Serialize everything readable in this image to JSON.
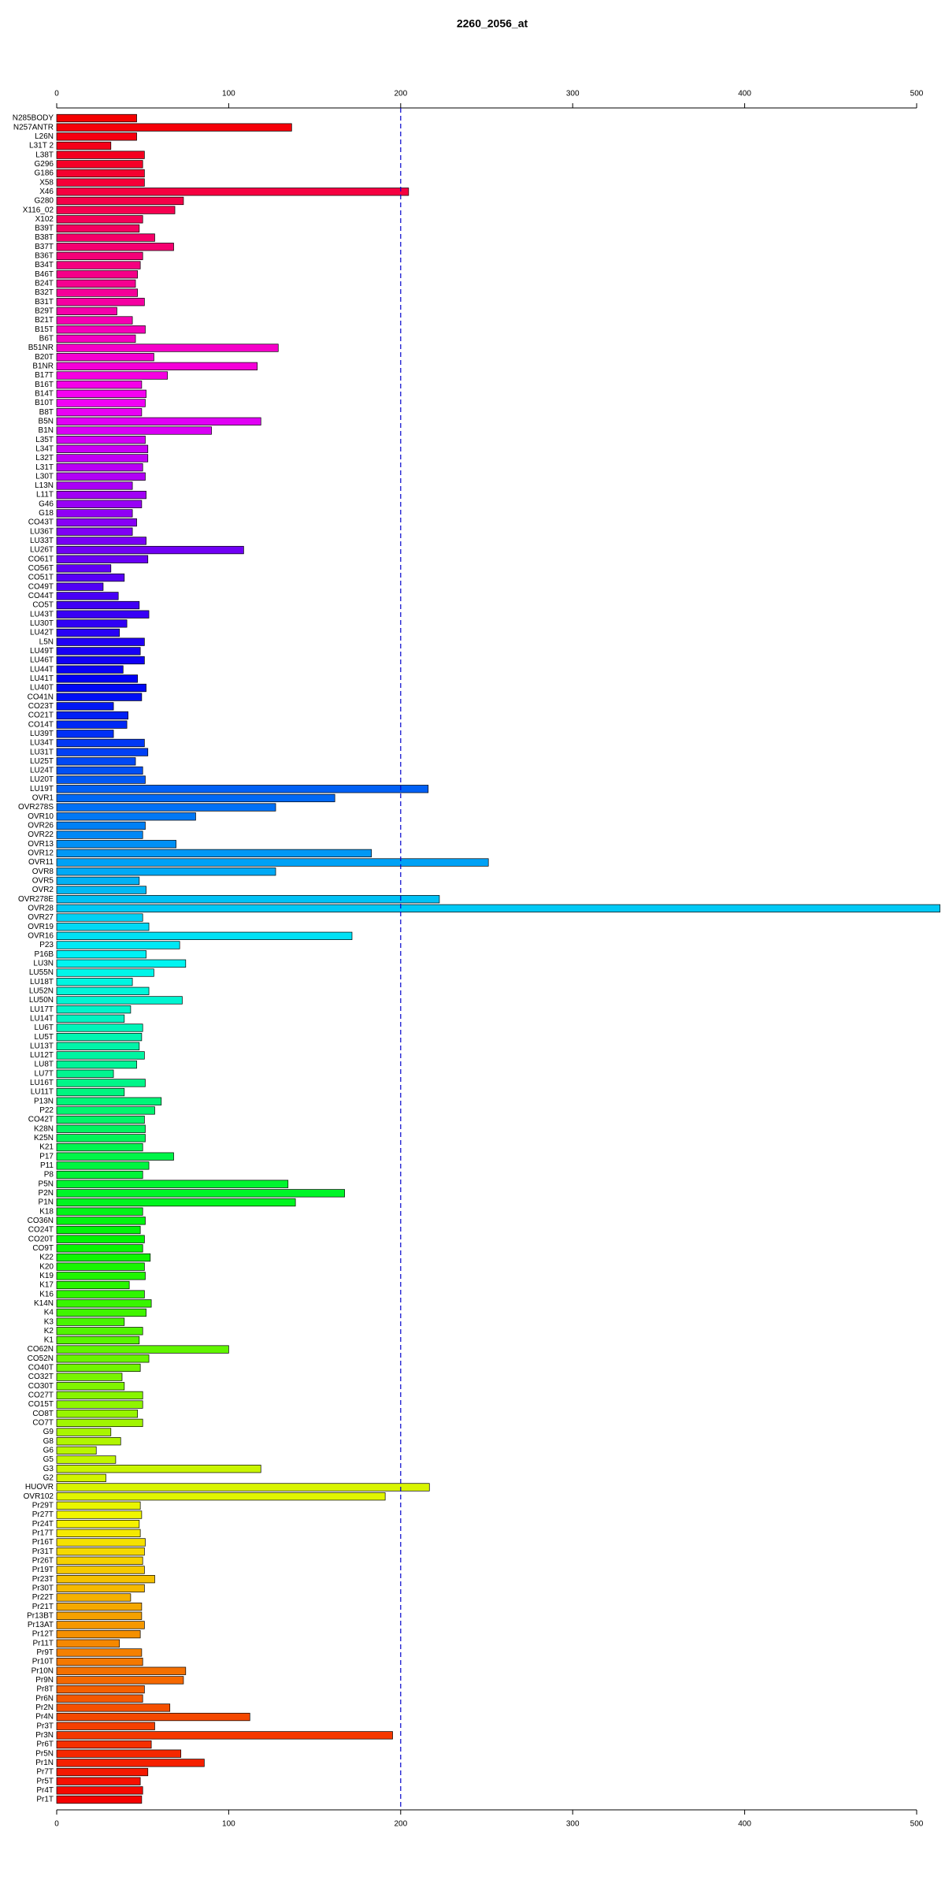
{
  "chart_data": {
    "type": "barh",
    "title": "2260_2056_at",
    "categories": [
      "N285BODY",
      "N257ANTR",
      "L26N",
      "L31T 2",
      "L38T",
      "G296",
      "G186",
      "X58",
      "X46",
      "G280",
      "X116_02",
      "X102",
      "B39T",
      "B38T",
      "B37T",
      "B36T",
      "B34T",
      "B46T",
      "B24T",
      "B32T",
      "B31T",
      "B29T",
      "B21T",
      "B15T",
      "B6T",
      "B51NR",
      "B20T",
      "B1NR",
      "B17T",
      "B16T",
      "B14T",
      "B10T",
      "B8T",
      "B5N",
      "B1N",
      "L35T",
      "L34T",
      "L32T",
      "L31T",
      "L30T",
      "L13N",
      "L11T",
      "G46",
      "G18",
      "CO43T",
      "LU36T",
      "LU33T",
      "LU26T",
      "CO61T",
      "CO56T",
      "CO51T",
      "CO49T",
      "CO44T",
      "CO5T",
      "LU43T",
      "LU30T",
      "LU42T",
      "L5N",
      "LU49T",
      "LU46T",
      "LU44T",
      "LU41T",
      "LU40T",
      "CO41N",
      "CO23T",
      "CO21T",
      "CO14T",
      "LU39T",
      "LU34T",
      "LU31T",
      "LU25T",
      "LU24T",
      "LU20T",
      "LU19T",
      "OVR1",
      "OVR278S",
      "OVR10",
      "OVR26",
      "OVR22",
      "OVR13",
      "OVR12",
      "OVR11",
      "OVR8",
      "OVR5",
      "OVR2",
      "OVR278E",
      "OVR28",
      "OVR27",
      "OVR19",
      "OVR16",
      "P23",
      "P16B",
      "LU3N",
      "LU55N",
      "LU18T",
      "LU52N",
      "LU50N",
      "LU17T",
      "LU14T",
      "LU6T",
      "LU5T",
      "LU13T",
      "LU12T",
      "LU8T",
      "LU7T",
      "LU16T",
      "LU11T",
      "P13N",
      "P22",
      "CO42T",
      "K28N",
      "K25N",
      "K21",
      "P17",
      "P11",
      "P8",
      "P5N",
      "P2N",
      "P1N",
      "K18",
      "CO36N",
      "CO24T",
      "CO20T",
      "CO9T",
      "K22",
      "K20",
      "K19",
      "K17",
      "K16",
      "K14N",
      "K4",
      "K3",
      "K2",
      "K1",
      "CO62N",
      "CO52N",
      "CO40T",
      "CO32T",
      "CO30T",
      "CO27T",
      "CO15T",
      "CO8T",
      "CO7T",
      "G9",
      "G8",
      "G6",
      "G5",
      "G3",
      "G2",
      "HUOVR",
      "OVR102",
      "Pr29T",
      "Pr27T",
      "Pr24T",
      "Pr17T",
      "Pr16T",
      "Pr31T",
      "Pr26T",
      "Pr19T",
      "Pr23T",
      "Pr30T",
      "Pr22T",
      "Pr21T",
      "Pr13BT",
      "Pr13AT",
      "Pr12T",
      "Pr11T",
      "Pr9T",
      "Pr10T",
      "Pr10N",
      "Pr9N",
      "Pr8T",
      "Pr6N",
      "Pr2N",
      "Pr4N",
      "Pr3T",
      "Pr3N",
      "Pr6T",
      "Pr5N",
      "Pr1N",
      "Pr7T",
      "Pr5T",
      "Pr4T",
      "Pr1T"
    ],
    "values": [
      46.5,
      136.6,
      46.5,
      31.5,
      51,
      50,
      51,
      51,
      204.6,
      73.7,
      68.7,
      50,
      48,
      57,
      68,
      50,
      48.6,
      47,
      45.8,
      47,
      51,
      35,
      44,
      51.5,
      45.8,
      128.8,
      56.5,
      116.6,
      64.4,
      49.4,
      52,
      51.5,
      49.4,
      118.7,
      90,
      51.5,
      53,
      53,
      50,
      51.5,
      44,
      52,
      49.4,
      44,
      46.5,
      44,
      52,
      108.7,
      53,
      31.5,
      39.3,
      27,
      35.8,
      48,
      53.6,
      40.8,
      36.5,
      51,
      48.6,
      51,
      38.6,
      47,
      52,
      49.4,
      33,
      41.5,
      40.8,
      33,
      51,
      53,
      45.8,
      50,
      51.5,
      216,
      161.7,
      127.3,
      80.8,
      51.5,
      50,
      69.4,
      183,
      251,
      127.3,
      48,
      52,
      222.5,
      513.6,
      50,
      53.6,
      171.7,
      71.5,
      52,
      75,
      56.5,
      44,
      53.6,
      73,
      43,
      39.3,
      50,
      49.4,
      48,
      51,
      46.5,
      33,
      51.5,
      39.3,
      60.8,
      57,
      51,
      51.5,
      51.5,
      50,
      68,
      53.6,
      50,
      134.5,
      167.4,
      138.8,
      50,
      51.5,
      48.6,
      51,
      50,
      54.4,
      51,
      51.5,
      42.2,
      51,
      55,
      52,
      39.3,
      50,
      48,
      100,
      53.6,
      48.6,
      38,
      39.3,
      50,
      50,
      47,
      50,
      31.5,
      37.2,
      23,
      34.3,
      118.7,
      28.6,
      216.7,
      191,
      48.6,
      49.4,
      48,
      48.6,
      51.5,
      51,
      50,
      51,
      57,
      51,
      43,
      49.4,
      49.4,
      51,
      48.6,
      36.5,
      49.4,
      50,
      75,
      73.7,
      51,
      50,
      65.8,
      112.3,
      57,
      195.3,
      55,
      72.2,
      85.8,
      53,
      48.6,
      50,
      49.4
    ],
    "color_scale": "rainbow",
    "xlim": [
      0,
      514
    ],
    "xticks": [
      0,
      100,
      200,
      300,
      400,
      500
    ],
    "vline": 200,
    "vline_color": "#0000cc"
  }
}
